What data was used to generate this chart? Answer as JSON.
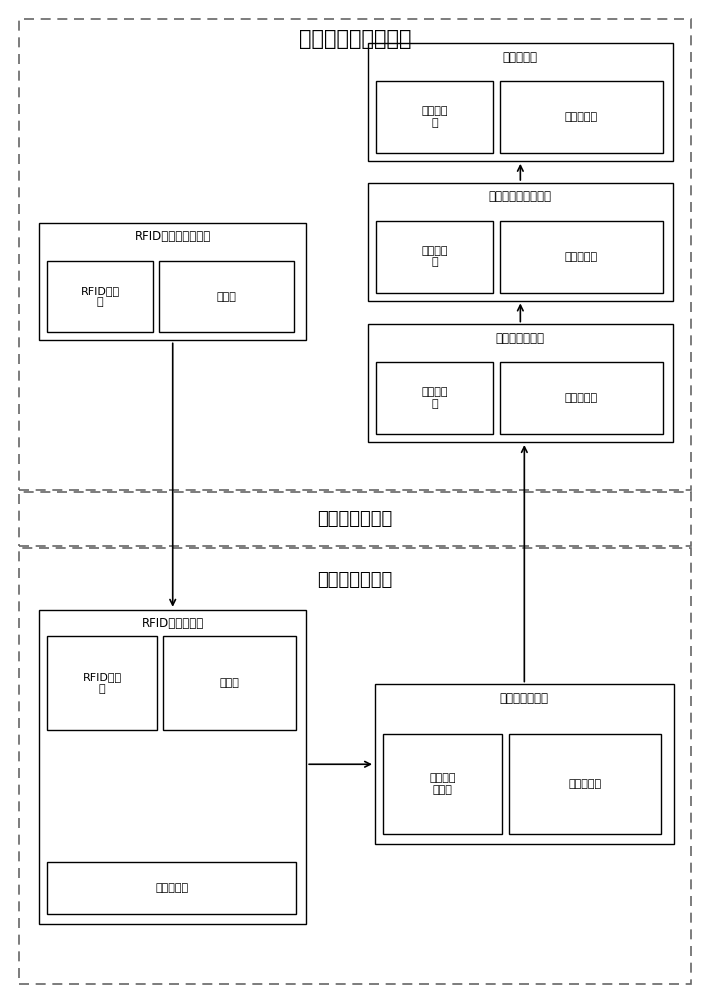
{
  "title_layer1": "资源管理信息应用层",
  "title_layer2": "感知网络传送层",
  "title_layer3": "物理资源感知层",
  "box_rfid_encoder_title": "RFID编码分配处理器",
  "box_rfid_encoder_sub1": "RFID编码\n器",
  "box_rfid_encoder_sub2": "分配器",
  "box_alert_title": "资源预警器",
  "box_alert_sub1": "预警处理\n器",
  "box_alert_sub2": "预警展示器",
  "box_analysis_title": "资源预警分析处理器",
  "box_analysis_sub1": "资源统计\n器",
  "box_analysis_sub2": "预警分析器",
  "box_event_handler_title": "变更事件处理器",
  "box_event_handler_sub1": "事件监听\n器",
  "box_event_handler_sub2": "事件处理器",
  "box_rfid_monitor_title": "RFID资源监控器",
  "box_rfid_monitor_sub1": "RFID读写\n器",
  "box_rfid_monitor_sub2": "过滤器",
  "box_rfid_monitor_sub3": "变化对比器",
  "box_change_notifier_title": "变更事件通知器",
  "box_change_notifier_sub1": "变更事件\n生成器",
  "box_change_notifier_sub2": "事件传输器",
  "bg_color": "#ffffff",
  "box_fill": "#ffffff",
  "box_edge": "#000000",
  "dashed_edge": "#666666",
  "text_color": "#000000",
  "font_size_title": 15,
  "font_size_layer": 13,
  "font_size_box_title": 8.5,
  "font_size_box_sub": 8
}
